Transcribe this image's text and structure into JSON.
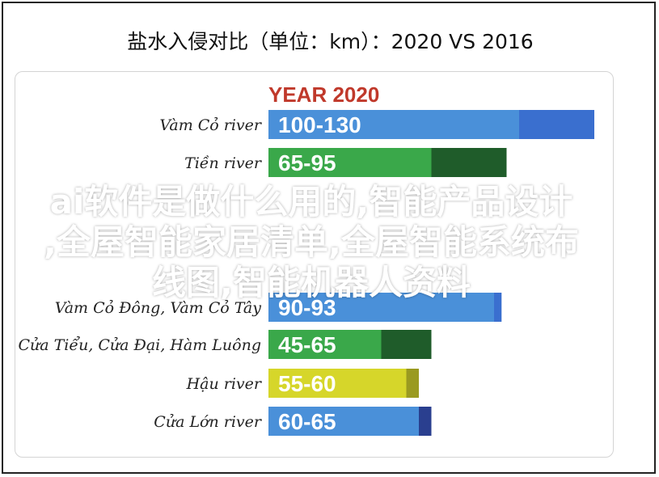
{
  "title": "盐水入侵对比（单位：km）：2020 VS 2016",
  "overlay_lines": [
    "ai软件是做什么用的,智能产品设计",
    ",全屋智能家居清单,全屋智能系统布",
    "线图,智能机器人资料"
  ],
  "chart_data": {
    "type": "bar",
    "orientation": "horizontal",
    "title": "",
    "groups": [
      {
        "name": "YEAR 2020",
        "color": "#c0392b",
        "rows": [
          {
            "label": "Vàm Cỏ river",
            "range_label": "100-130",
            "color_light": "#4a90d9",
            "color_dark": "#3a6fcf",
            "value_min": 100,
            "value_max": 130
          },
          {
            "label": "Tiền river",
            "range_label": "65-95",
            "color_light": "#3aa84a",
            "color_dark": "#1f5c2a",
            "value_min": 65,
            "value_max": 95
          }
        ]
      },
      {
        "name": "",
        "color": "#c0392b",
        "rows": [
          {
            "label": "Vàm Cỏ Đông, Vàm Cỏ Tây",
            "range_label": "90-93",
            "color_light": "#4a90d9",
            "color_dark": "#3a6fcf",
            "value_min": 90,
            "value_max": 93
          },
          {
            "label": "Cửa Tiểu, Cửa Đại, Hàm Luông",
            "range_label": "45-65",
            "color_light": "#3aa84a",
            "color_dark": "#1f5c2a",
            "value_min": 45,
            "value_max": 65
          },
          {
            "label": "Hậu river",
            "range_label": "55-60",
            "color_light": "#d6d62a",
            "color_dark": "#9a9a20",
            "value_min": 55,
            "value_max": 60
          },
          {
            "label": "Cửa Lớn river",
            "range_label": "60-65",
            "color_light": "#4a90d9",
            "color_dark": "#2a3f8f",
            "value_min": 60,
            "value_max": 65
          }
        ]
      }
    ],
    "grid": false
  }
}
